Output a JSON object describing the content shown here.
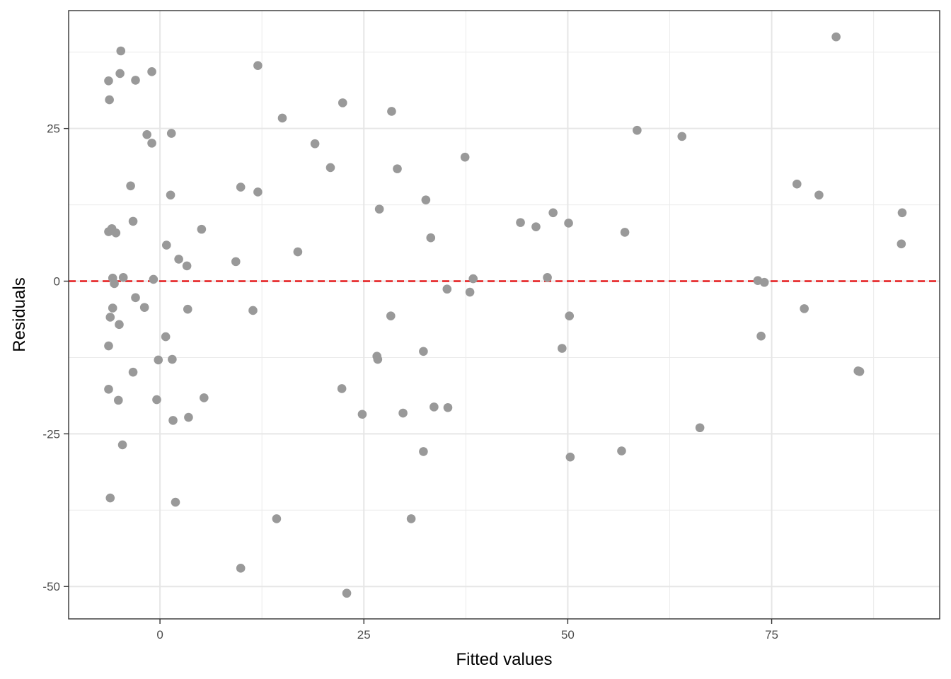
{
  "chart_data": {
    "type": "scatter",
    "xlabel": "Fitted values",
    "ylabel": "Residuals",
    "xlim": [
      -11.2,
      95.6
    ],
    "ylim": [
      -55.3,
      44.3
    ],
    "x_ticks": [
      0,
      25,
      50,
      75
    ],
    "x_tick_labels": [
      "0",
      "25",
      "50",
      "75"
    ],
    "y_ticks": [
      -50,
      -25,
      0,
      25
    ],
    "y_tick_labels": [
      "-50",
      "-25",
      "0",
      "25"
    ],
    "grid": true,
    "point_color": "#999999",
    "reference_line": {
      "y": 0,
      "color": "#e41a1c",
      "style": "dashed"
    },
    "points": [
      {
        "x": -6.3,
        "y": 32.8
      },
      {
        "x": -6.2,
        "y": 29.7
      },
      {
        "x": -4.8,
        "y": 37.7
      },
      {
        "x": -4.9,
        "y": 34.0
      },
      {
        "x": -3.0,
        "y": 32.9
      },
      {
        "x": -1.0,
        "y": 34.3
      },
      {
        "x": -1.6,
        "y": 24.0
      },
      {
        "x": -1.0,
        "y": 22.6
      },
      {
        "x": 1.4,
        "y": 24.2
      },
      {
        "x": 12.0,
        "y": 35.3
      },
      {
        "x": 15.0,
        "y": 26.7
      },
      {
        "x": 22.4,
        "y": 29.2
      },
      {
        "x": 28.4,
        "y": 27.8
      },
      {
        "x": -3.6,
        "y": 15.6
      },
      {
        "x": 1.3,
        "y": 14.1
      },
      {
        "x": -3.3,
        "y": 9.8
      },
      {
        "x": -6.3,
        "y": 8.1
      },
      {
        "x": -5.9,
        "y": 8.6
      },
      {
        "x": -5.4,
        "y": 7.9
      },
      {
        "x": 5.1,
        "y": 8.5
      },
      {
        "x": 0.8,
        "y": 5.9
      },
      {
        "x": 2.3,
        "y": 3.6
      },
      {
        "x": 3.3,
        "y": 2.5
      },
      {
        "x": -5.8,
        "y": 0.5
      },
      {
        "x": -4.5,
        "y": 0.6
      },
      {
        "x": -0.8,
        "y": 0.3
      },
      {
        "x": -5.6,
        "y": -0.4
      },
      {
        "x": -3.0,
        "y": -2.7
      },
      {
        "x": -1.9,
        "y": -4.3
      },
      {
        "x": -5.8,
        "y": -4.4
      },
      {
        "x": -6.1,
        "y": -5.9
      },
      {
        "x": -5.0,
        "y": -7.1
      },
      {
        "x": 3.4,
        "y": -4.6
      },
      {
        "x": 0.7,
        "y": -9.1
      },
      {
        "x": -6.3,
        "y": -10.6
      },
      {
        "x": -0.2,
        "y": -12.9
      },
      {
        "x": 1.5,
        "y": -12.8
      },
      {
        "x": -3.3,
        "y": -14.9
      },
      {
        "x": -6.3,
        "y": -17.7
      },
      {
        "x": -5.1,
        "y": -19.5
      },
      {
        "x": -0.4,
        "y": -19.4
      },
      {
        "x": 5.4,
        "y": -19.1
      },
      {
        "x": 1.6,
        "y": -22.8
      },
      {
        "x": 3.5,
        "y": -22.3
      },
      {
        "x": -4.6,
        "y": -26.8
      },
      {
        "x": -6.1,
        "y": -35.5
      },
      {
        "x": 1.9,
        "y": -36.2
      },
      {
        "x": 9.9,
        "y": 15.4
      },
      {
        "x": 12.0,
        "y": 14.6
      },
      {
        "x": 9.3,
        "y": 3.2
      },
      {
        "x": 16.9,
        "y": 4.8
      },
      {
        "x": 19.0,
        "y": 22.5
      },
      {
        "x": 20.9,
        "y": 18.6
      },
      {
        "x": 11.4,
        "y": -4.8
      },
      {
        "x": 14.3,
        "y": -38.9
      },
      {
        "x": 9.9,
        "y": -47.0
      },
      {
        "x": 22.3,
        "y": -17.6
      },
      {
        "x": 22.9,
        "y": -51.1
      },
      {
        "x": 24.8,
        "y": -21.8
      },
      {
        "x": 26.9,
        "y": 11.8
      },
      {
        "x": 29.1,
        "y": 18.4
      },
      {
        "x": 37.4,
        "y": 20.3
      },
      {
        "x": 32.6,
        "y": 13.3
      },
      {
        "x": 33.2,
        "y": 7.1
      },
      {
        "x": 26.6,
        "y": -12.3
      },
      {
        "x": 26.7,
        "y": -12.8
      },
      {
        "x": 28.3,
        "y": -5.7
      },
      {
        "x": 32.3,
        "y": -11.5
      },
      {
        "x": 35.2,
        "y": -1.3
      },
      {
        "x": 38.0,
        "y": -1.8
      },
      {
        "x": 38.4,
        "y": 0.4
      },
      {
        "x": 29.8,
        "y": -21.6
      },
      {
        "x": 33.6,
        "y": -20.6
      },
      {
        "x": 35.3,
        "y": -20.7
      },
      {
        "x": 32.3,
        "y": -27.9
      },
      {
        "x": 30.8,
        "y": -38.9
      },
      {
        "x": 44.2,
        "y": 9.6
      },
      {
        "x": 46.1,
        "y": 8.9
      },
      {
        "x": 48.2,
        "y": 11.2
      },
      {
        "x": 50.1,
        "y": 9.5
      },
      {
        "x": 47.5,
        "y": 0.6
      },
      {
        "x": 50.2,
        "y": -5.7
      },
      {
        "x": 49.3,
        "y": -11.0
      },
      {
        "x": 50.3,
        "y": -28.8
      },
      {
        "x": 56.6,
        "y": -27.8
      },
      {
        "x": 57.0,
        "y": 8.0
      },
      {
        "x": 58.5,
        "y": 24.7
      },
      {
        "x": 64.0,
        "y": 23.7
      },
      {
        "x": 66.2,
        "y": -24.0
      },
      {
        "x": 73.3,
        "y": 0.1
      },
      {
        "x": 74.1,
        "y": -0.2
      },
      {
        "x": 73.7,
        "y": -9.0
      },
      {
        "x": 78.1,
        "y": 15.9
      },
      {
        "x": 79.0,
        "y": -4.5
      },
      {
        "x": 80.8,
        "y": 14.1
      },
      {
        "x": 82.9,
        "y": 40.0
      },
      {
        "x": 85.6,
        "y": -14.7
      },
      {
        "x": 85.8,
        "y": -14.8
      },
      {
        "x": 90.9,
        "y": 6.1
      },
      {
        "x": 91.0,
        "y": 11.2
      }
    ]
  }
}
